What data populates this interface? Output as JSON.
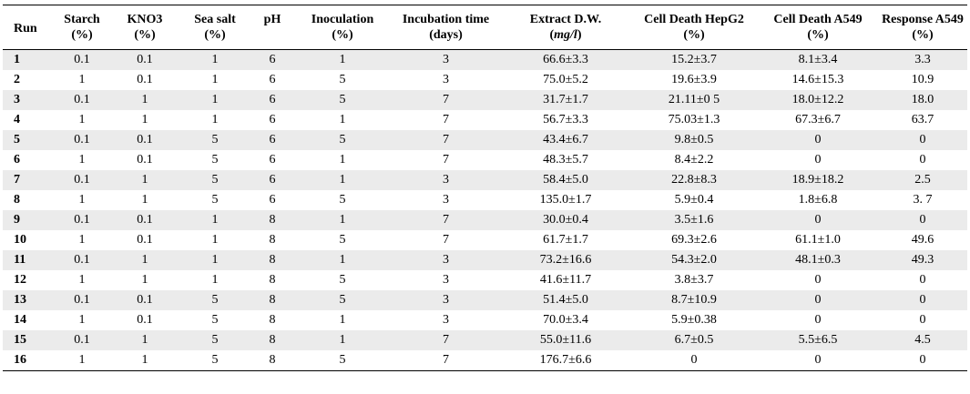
{
  "table": {
    "columns": [
      {
        "line1": "Run",
        "line2": ""
      },
      {
        "line1": "Starch",
        "line2": "(%)"
      },
      {
        "line1": "KNO3",
        "line2": "(%)"
      },
      {
        "line1": "Sea salt",
        "line2": "(%)"
      },
      {
        "line1": "pH",
        "line2": ""
      },
      {
        "line1": "Inoculation",
        "line2": "(%)"
      },
      {
        "line1": "Incubation time",
        "line2": "(days)"
      },
      {
        "line1": "Extract D.W.",
        "line2": "(mg/l)"
      },
      {
        "line1": "Cell Death HepG2",
        "line2": "(%)"
      },
      {
        "line1": "Cell Death A549",
        "line2": "(%)"
      },
      {
        "line1": "Response A549",
        "line2": "(%)"
      }
    ],
    "rows": [
      [
        "1",
        "0.1",
        "0.1",
        "1",
        "6",
        "1",
        "3",
        "66.6±3.3",
        "15.2±3.7",
        "8.1±3.4",
        "3.3"
      ],
      [
        "2",
        "1",
        "0.1",
        "1",
        "6",
        "5",
        "3",
        "75.0±5.2",
        "19.6±3.9",
        "14.6±15.3",
        "10.9"
      ],
      [
        "3",
        "0.1",
        "1",
        "1",
        "6",
        "5",
        "7",
        "31.7±1.7",
        "21.11±0 5",
        "18.0±12.2",
        "18.0"
      ],
      [
        "4",
        "1",
        "1",
        "1",
        "6",
        "1",
        "7",
        "56.7±3.3",
        "75.03±1.3",
        "67.3±6.7",
        "63.7"
      ],
      [
        "5",
        "0.1",
        "0.1",
        "5",
        "6",
        "5",
        "7",
        "43.4±6.7",
        "9.8±0.5",
        "0",
        "0"
      ],
      [
        "6",
        "1",
        "0.1",
        "5",
        "6",
        "1",
        "7",
        "48.3±5.7",
        "8.4±2.2",
        "0",
        "0"
      ],
      [
        "7",
        "0.1",
        "1",
        "5",
        "6",
        "1",
        "3",
        "58.4±5.0",
        "22.8±8.3",
        "18.9±18.2",
        "2.5"
      ],
      [
        "8",
        "1",
        "1",
        "5",
        "6",
        "5",
        "3",
        "135.0±1.7",
        "5.9±0.4",
        "1.8±6.8",
        "3. 7"
      ],
      [
        "9",
        "0.1",
        "0.1",
        "1",
        "8",
        "1",
        "7",
        "30.0±0.4",
        "3.5±1.6",
        "0",
        "0"
      ],
      [
        "10",
        "1",
        "0.1",
        "1",
        "8",
        "5",
        "7",
        "61.7±1.7",
        "69.3±2.6",
        "61.1±1.0",
        "49.6"
      ],
      [
        "11",
        "0.1",
        "1",
        "1",
        "8",
        "1",
        "3",
        "73.2±16.6",
        "54.3±2.0",
        "48.1±0.3",
        "49.3"
      ],
      [
        "12",
        "1",
        "1",
        "1",
        "8",
        "5",
        "3",
        "41.6±11.7",
        "3.8±3.7",
        "0",
        "0"
      ],
      [
        "13",
        "0.1",
        "0.1",
        "5",
        "8",
        "5",
        "3",
        "51.4±5.0",
        "8.7±10.9",
        "0",
        "0"
      ],
      [
        "14",
        "1",
        "0.1",
        "5",
        "8",
        "1",
        "3",
        "70.0±3.4",
        "5.9±0.38",
        "0",
        "0"
      ],
      [
        "15",
        "0.1",
        "1",
        "5",
        "8",
        "1",
        "7",
        "55.0±11.6",
        "6.7±0.5",
        "5.5±6.5",
        "4.5"
      ],
      [
        "16",
        "1",
        "1",
        "5",
        "8",
        "5",
        "7",
        "176.7±6.6",
        "0",
        "0",
        "0"
      ]
    ]
  },
  "colors": {
    "stripe": "#ebebeb",
    "rule": "#000000"
  }
}
